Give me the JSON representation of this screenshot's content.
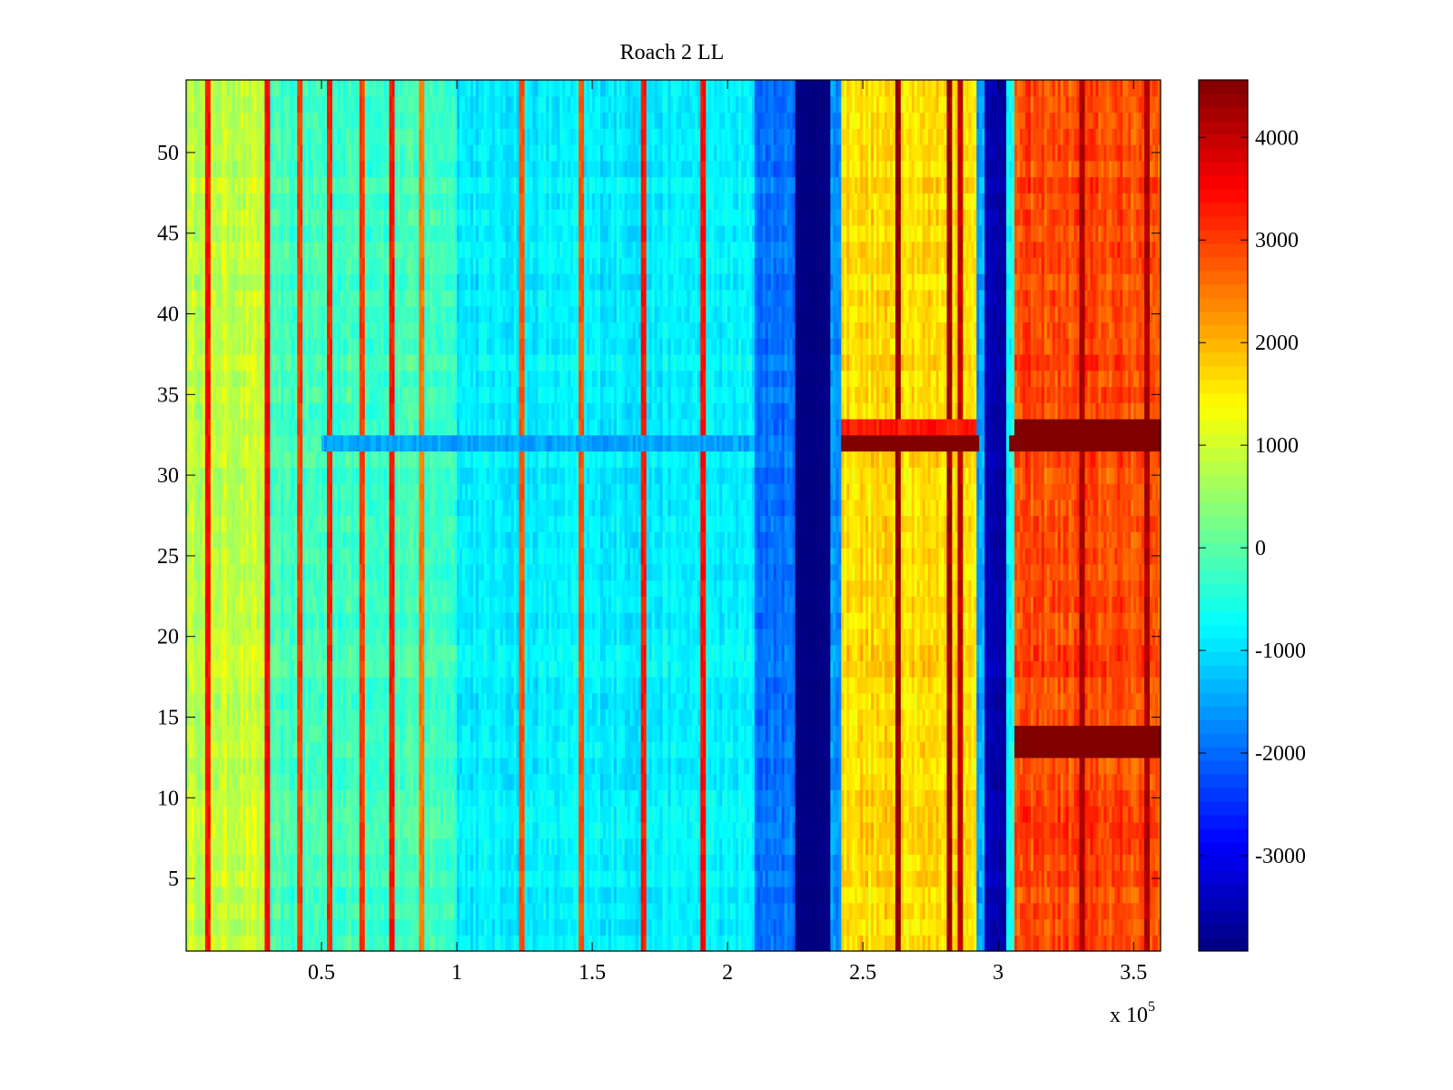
{
  "chart_data": {
    "type": "heatmap",
    "title": "Roach 2 LL",
    "xlabel": "",
    "ylabel": "",
    "x_multiplier_label": {
      "base": "x 10",
      "exponent": "5"
    },
    "xlim": [
      0,
      3.6
    ],
    "ylim": [
      0.5,
      54.5
    ],
    "rows": 54,
    "clim": [
      -3930,
      4560
    ],
    "colormap": "jet",
    "xticks": [
      0.5,
      1,
      1.5,
      2,
      2.5,
      3,
      3.5
    ],
    "xtick_labels": [
      "0.5",
      "1",
      "1.5",
      "2",
      "2.5",
      "3",
      "3.5"
    ],
    "yticks": [
      5,
      10,
      15,
      20,
      25,
      30,
      35,
      40,
      45,
      50
    ],
    "ytick_labels": [
      "5",
      "10",
      "15",
      "20",
      "25",
      "30",
      "35",
      "40",
      "45",
      "50"
    ],
    "colorbar_ticks": [
      -3000,
      -2000,
      -1000,
      0,
      1000,
      2000,
      3000,
      4000
    ],
    "colorbar_tick_labels": [
      "-3000",
      "-2000",
      "-1000",
      "0",
      "1000",
      "2000",
      "3000",
      "4000"
    ],
    "column_bands": [
      {
        "x": [
          0,
          0.3
        ],
        "value": 900,
        "noise": 500
      },
      {
        "x": [
          0.3,
          1.0
        ],
        "value": -200,
        "noise": 450
      },
      {
        "x": [
          1.0,
          2.1
        ],
        "value": -850,
        "noise": 400
      },
      {
        "x": [
          2.1,
          2.25
        ],
        "value": -1900,
        "noise": 400
      },
      {
        "x": [
          2.25,
          2.38
        ],
        "value": -3900,
        "noise": 80
      },
      {
        "x": [
          2.38,
          2.42
        ],
        "value": -1600,
        "noise": 500
      },
      {
        "x": [
          2.42,
          2.92
        ],
        "value": 1700,
        "noise": 500
      },
      {
        "x": [
          2.92,
          2.95
        ],
        "value": -1500,
        "noise": 500
      },
      {
        "x": [
          2.95,
          3.03
        ],
        "value": -3500,
        "noise": 300
      },
      {
        "x": [
          3.03,
          3.06
        ],
        "value": -800,
        "noise": 600
      },
      {
        "x": [
          3.06,
          3.6
        ],
        "value": 2900,
        "noise": 550
      }
    ],
    "stripes": [
      {
        "x": 0.08,
        "value": 3400
      },
      {
        "x": 0.3,
        "value": 3500
      },
      {
        "x": 0.42,
        "value": 3000
      },
      {
        "x": 0.53,
        "value": 3200
      },
      {
        "x": 0.65,
        "value": 3000
      },
      {
        "x": 0.76,
        "value": 3300
      },
      {
        "x": 0.87,
        "value": 2500
      },
      {
        "x": 1.24,
        "value": 2800
      },
      {
        "x": 1.46,
        "value": 2800
      },
      {
        "x": 1.69,
        "value": 3300
      },
      {
        "x": 1.91,
        "value": 3400
      },
      {
        "x": 2.63,
        "value": 4400
      },
      {
        "x": 2.82,
        "value": 4300
      },
      {
        "x": 2.86,
        "value": 4000
      },
      {
        "x": 3.31,
        "value": 4200
      },
      {
        "x": 3.55,
        "value": 4200
      }
    ],
    "row_overrides": [
      {
        "row": 32,
        "x": [
          2.42,
          2.93
        ],
        "value": 4560
      },
      {
        "row": 32,
        "x": [
          3.04,
          3.6
        ],
        "value": 4560
      },
      {
        "row": 33,
        "x": [
          2.42,
          2.92
        ],
        "value": 3300
      },
      {
        "row": 33,
        "x": [
          3.06,
          3.6
        ],
        "value": 4560
      },
      {
        "row": 32,
        "x": [
          0.5,
          2.1
        ],
        "value": -1500
      },
      {
        "row": 13,
        "x": [
          3.06,
          3.6
        ],
        "value": 4560
      },
      {
        "row": 14,
        "x": [
          3.06,
          3.6
        ],
        "value": 4560
      }
    ]
  }
}
